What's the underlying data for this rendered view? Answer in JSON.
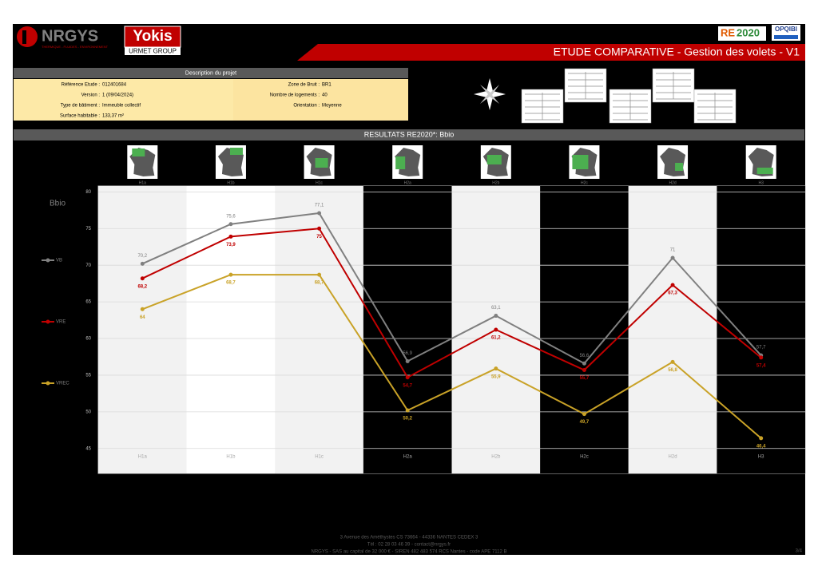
{
  "header": {
    "brand": "NRGYS",
    "brand_tagline": "THERMIQUE - FLUIDES - ENVIRONNEMENT",
    "partner": "Yokis",
    "partner_group": "URMET GROUP",
    "label_re": "RE",
    "label_year": "2020",
    "certification": "OPQIBI",
    "banner": "ETUDE COMPARATIVE - Gestion des volets - V1"
  },
  "project": {
    "title": "Description du projet",
    "fields_left": [
      {
        "label": "Référence Etude :",
        "value": "012401684"
      },
      {
        "label": "Version :",
        "value": "1 (09/04/2024)"
      },
      {
        "label": "Type de bâtiment :",
        "value": "Immeuble collectif"
      },
      {
        "label": "Surface habitable :",
        "value": "133,37 m²"
      }
    ],
    "fields_right": [
      {
        "label": "Zone de Bruit :",
        "value": "BR1"
      },
      {
        "label": "Nombre de logements :",
        "value": "40"
      },
      {
        "label": "Orientation :",
        "value": "Moyenne"
      }
    ]
  },
  "results_title": "RESULTATS RE2020*: Bbio",
  "chart_data": {
    "type": "line",
    "ylabel": "Bbio",
    "categories": [
      "H1a",
      "H1b",
      "H1c",
      "H2a",
      "H2b",
      "H2c",
      "H2d",
      "H3"
    ],
    "series": [
      {
        "name": "VB",
        "color": "#808080",
        "values": [
          70.2,
          75.6,
          77.1,
          56.9,
          63.1,
          56.6,
          71,
          57.7
        ],
        "value_labels": [
          "70,2",
          "75,6",
          "77,1",
          "56,9",
          "63,1",
          "56,6",
          "71",
          "57,7"
        ]
      },
      {
        "name": "VRE",
        "color": "#c00000",
        "values": [
          68.2,
          73.9,
          75,
          54.7,
          61.2,
          55.7,
          67.3,
          57.4
        ],
        "value_labels": [
          "68,2",
          "73,9",
          "75",
          "54,7",
          "61,2",
          "55,7",
          "67,3",
          "57,4"
        ]
      },
      {
        "name": "VREC",
        "color": "#c9a227",
        "values": [
          64,
          68.7,
          68.7,
          50.2,
          55.9,
          49.7,
          56.8,
          46.4
        ],
        "value_labels": [
          "64",
          "68,7",
          "68,7",
          "50,2",
          "55,9",
          "49,7",
          "56,8",
          "46,4"
        ]
      }
    ],
    "ylim": [
      41.6,
      80.8
    ],
    "yticks": [
      45,
      50,
      55,
      60,
      65,
      70,
      75,
      80
    ],
    "grid": true,
    "legend": "left"
  },
  "footer": {
    "address": "3 Avenue des Améthystes CS 73664 - 44336 NANTES CEDEX 3",
    "contact": "Tél : 02 28 03 46 39 - contact@nrgys.fr",
    "legal": "NRGYS - SAS au capital de 32 000 € - SIREN 482 483 574 RCS Nantes - code APE 7112 B",
    "page": "3/4"
  }
}
